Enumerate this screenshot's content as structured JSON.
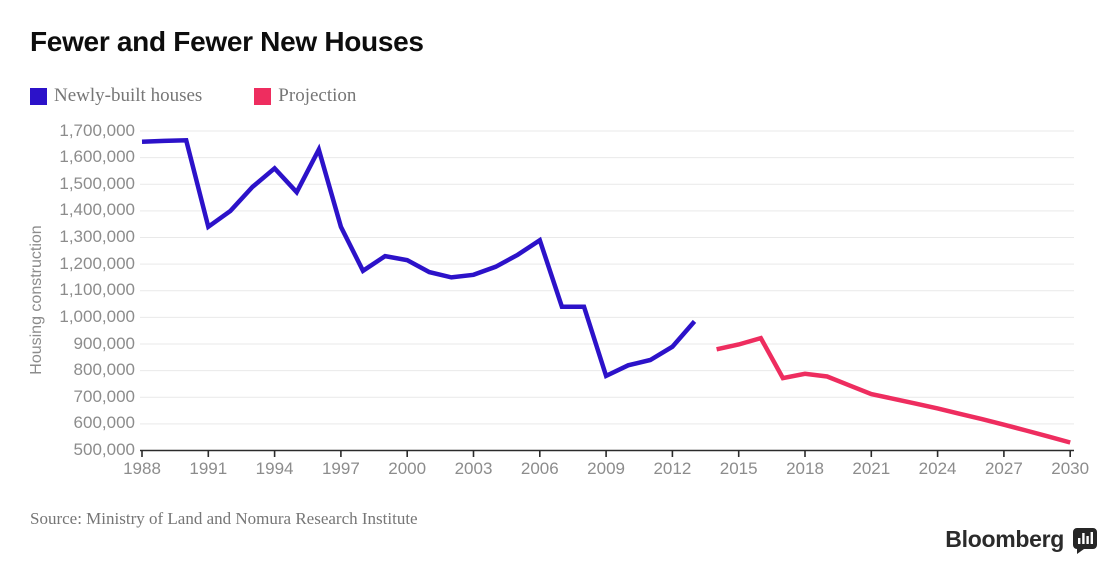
{
  "chart_data": {
    "type": "line",
    "title": "Fewer and Fewer New Houses",
    "xlabel": "",
    "ylabel": "Housing construction",
    "ylim": [
      500000,
      1700000
    ],
    "xlim": [
      1988,
      2030
    ],
    "y_tick_step": 100000,
    "x_ticks": [
      1988,
      1991,
      1994,
      1997,
      2000,
      2003,
      2006,
      2009,
      2012,
      2015,
      2018,
      2021,
      2024,
      2027,
      2030
    ],
    "grid": "horizontal",
    "legend_position": "top-left",
    "series": [
      {
        "name": "Newly-built houses",
        "color": "#2c12c9",
        "start_year": 1988,
        "values": [
          1660000,
          1663000,
          1665000,
          1340000,
          1400000,
          1490000,
          1560000,
          1470000,
          1630000,
          1340000,
          1175000,
          1230000,
          1215000,
          1170000,
          1150000,
          1160000,
          1190000,
          1235000,
          1290000,
          1040000,
          1040000,
          780000,
          820000,
          840000,
          890000,
          985000
        ]
      },
      {
        "name": "Projection",
        "color": "#ee2d5f",
        "start_year": 2014,
        "values": [
          880000,
          898000,
          922000,
          772000,
          788000,
          778000,
          745000,
          712000,
          694000,
          676000,
          658000,
          638000,
          618000,
          597000,
          575000,
          553000,
          530000
        ]
      }
    ]
  },
  "footer": {
    "source": "Source: Ministry of Land and Nomura Research Institute",
    "brand": "Bloomberg",
    "brand_icon": "bar-chart-icon"
  },
  "style": {
    "grid_color": "#e9e9e9",
    "axis_color": "#2b2b2b",
    "tick_label_color": "#8c8c8c",
    "text_gray": "#767676"
  }
}
